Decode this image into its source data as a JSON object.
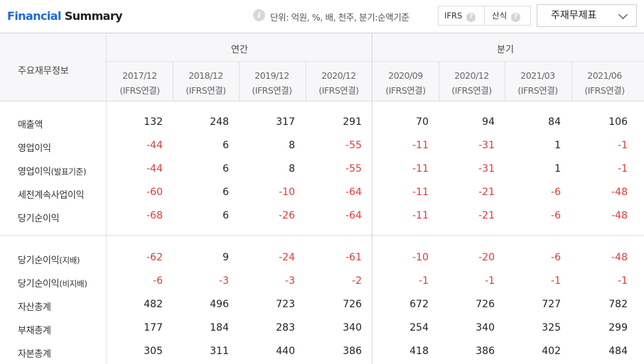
{
  "header": {
    "title_part1": "Financial",
    "title_part2": "Summary",
    "info_icon": "info-icon",
    "unit_text": "단위: 억원, %, 배, 천주, 분기:순액기준",
    "toggle": {
      "ifrs_label": "IFRS",
      "calc_label": "산식",
      "help_symbol": "?"
    },
    "dropdown": {
      "selected": "주재무제표"
    }
  },
  "table": {
    "row_header": "주요재무정보",
    "groups": {
      "annual": "연간",
      "quarterly": "분기"
    },
    "columns": [
      {
        "period": "2017/12",
        "basis": "(IFRS연결)"
      },
      {
        "period": "2018/12",
        "basis": "(IFRS연결)"
      },
      {
        "period": "2019/12",
        "basis": "(IFRS연결)"
      },
      {
        "period": "2020/12",
        "basis": "(IFRS연결)"
      },
      {
        "period": "2020/09",
        "basis": "(IFRS연결)"
      },
      {
        "period": "2020/12",
        "basis": "(IFRS연결)"
      },
      {
        "period": "2021/03",
        "basis": "(IFRS연결)"
      },
      {
        "period": "2021/06",
        "basis": "(IFRS연결)"
      }
    ],
    "rows": [
      {
        "label": "매출액",
        "sub": "",
        "values": [
          "132",
          "248",
          "317",
          "291",
          "70",
          "94",
          "84",
          "106"
        ]
      },
      {
        "label": "영업이익",
        "sub": "",
        "values": [
          "-44",
          "6",
          "8",
          "-55",
          "-11",
          "-31",
          "1",
          "-1"
        ]
      },
      {
        "label": "영업이익",
        "sub": "(발표기준)",
        "values": [
          "-44",
          "6",
          "8",
          "-55",
          "-11",
          "-31",
          "1",
          "-1"
        ]
      },
      {
        "label": "세전계속사업이익",
        "sub": "",
        "values": [
          "-60",
          "6",
          "-10",
          "-64",
          "-11",
          "-21",
          "-6",
          "-48"
        ]
      },
      {
        "label": "당기순이익",
        "sub": "",
        "values": [
          "-68",
          "6",
          "-26",
          "-64",
          "-11",
          "-21",
          "-6",
          "-48"
        ]
      },
      {
        "label": "당기순이익",
        "sub": "(지배)",
        "values": [
          "-62",
          "9",
          "-24",
          "-61",
          "-10",
          "-20",
          "-6",
          "-48"
        ]
      },
      {
        "label": "당기순이익",
        "sub": "(비지배)",
        "values": [
          "-6",
          "-3",
          "-3",
          "-2",
          "-1",
          "-1",
          "-1",
          "-1"
        ]
      },
      {
        "label": "자산총계",
        "sub": "",
        "values": [
          "482",
          "496",
          "723",
          "726",
          "672",
          "726",
          "727",
          "782"
        ]
      },
      {
        "label": "부채총계",
        "sub": "",
        "values": [
          "177",
          "184",
          "283",
          "340",
          "254",
          "340",
          "325",
          "299"
        ]
      },
      {
        "label": "자본총계",
        "sub": "",
        "values": [
          "305",
          "311",
          "440",
          "386",
          "418",
          "386",
          "402",
          "484"
        ]
      }
    ]
  }
}
